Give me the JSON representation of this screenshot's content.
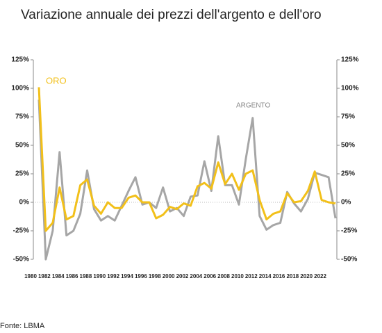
{
  "chart_data": {
    "type": "line",
    "title": "Variazione annuale dei prezzi dell'argento e dell'oro",
    "source": "Fonte: LBMA",
    "categories": [
      "1980",
      null,
      "1982",
      null,
      "1984",
      null,
      "1986",
      null,
      "1988",
      null,
      "1990",
      null,
      "1992",
      null,
      "1994",
      null,
      "1996",
      null,
      "1998",
      null,
      "2000",
      null,
      "2002",
      null,
      "2004",
      null,
      "2006",
      null,
      "2008",
      null,
      "2010",
      null,
      "2012",
      null,
      "2014",
      null,
      "2016",
      null,
      "2018",
      null,
      "2020",
      null,
      "2022",
      null
    ],
    "series": [
      {
        "name": "ORO",
        "color": "#f2c01a",
        "values": [
          101,
          -25,
          -18,
          13,
          -15,
          -12,
          15,
          20,
          -3,
          -10,
          0,
          -5,
          -5,
          4,
          6,
          0,
          0,
          -14,
          -11,
          -4,
          -6,
          -1,
          -3,
          14,
          17,
          12,
          35,
          16,
          25,
          11,
          25,
          28,
          2,
          -15,
          -10,
          -8,
          8,
          0,
          1,
          10,
          27,
          2,
          0,
          -1
        ]
      },
      {
        "name": "ARGENTO",
        "color": "#a6a6a6",
        "values": [
          90,
          -50,
          -25,
          44,
          -29,
          -25,
          -10,
          28,
          -6,
          -16,
          -12,
          -16,
          -3,
          10,
          22,
          -2,
          0,
          -5,
          13,
          -8,
          -5,
          -12,
          5,
          6,
          36,
          10,
          58,
          15,
          15,
          -2,
          38,
          74,
          -12,
          -24,
          -20,
          -18,
          9,
          -1,
          -8,
          3,
          26,
          24,
          22,
          -14
        ]
      }
    ],
    "ylim": [
      -50,
      125
    ],
    "yticks": [
      {
        "value": -50,
        "label": "-50%"
      },
      {
        "value": -25,
        "label": "-25%"
      },
      {
        "value": 0,
        "label": "0%"
      },
      {
        "value": 25,
        "label": "25%"
      },
      {
        "value": 50,
        "label": "50%"
      },
      {
        "value": 75,
        "label": "75%"
      },
      {
        "value": 100,
        "label": "100%"
      },
      {
        "value": 125,
        "label": "125%"
      }
    ],
    "y2lim": [
      -50,
      125
    ],
    "y2ticks": [
      {
        "value": -50,
        "label": "-50%"
      },
      {
        "value": -25,
        "label": "-25%"
      },
      {
        "value": 0,
        "label": "0%"
      },
      {
        "value": 25,
        "label": "25%"
      },
      {
        "value": 50,
        "label": "50%"
      },
      {
        "value": 75,
        "label": "75%"
      },
      {
        "value": 100,
        "label": "100%"
      },
      {
        "value": 125,
        "label": "125%"
      }
    ]
  }
}
